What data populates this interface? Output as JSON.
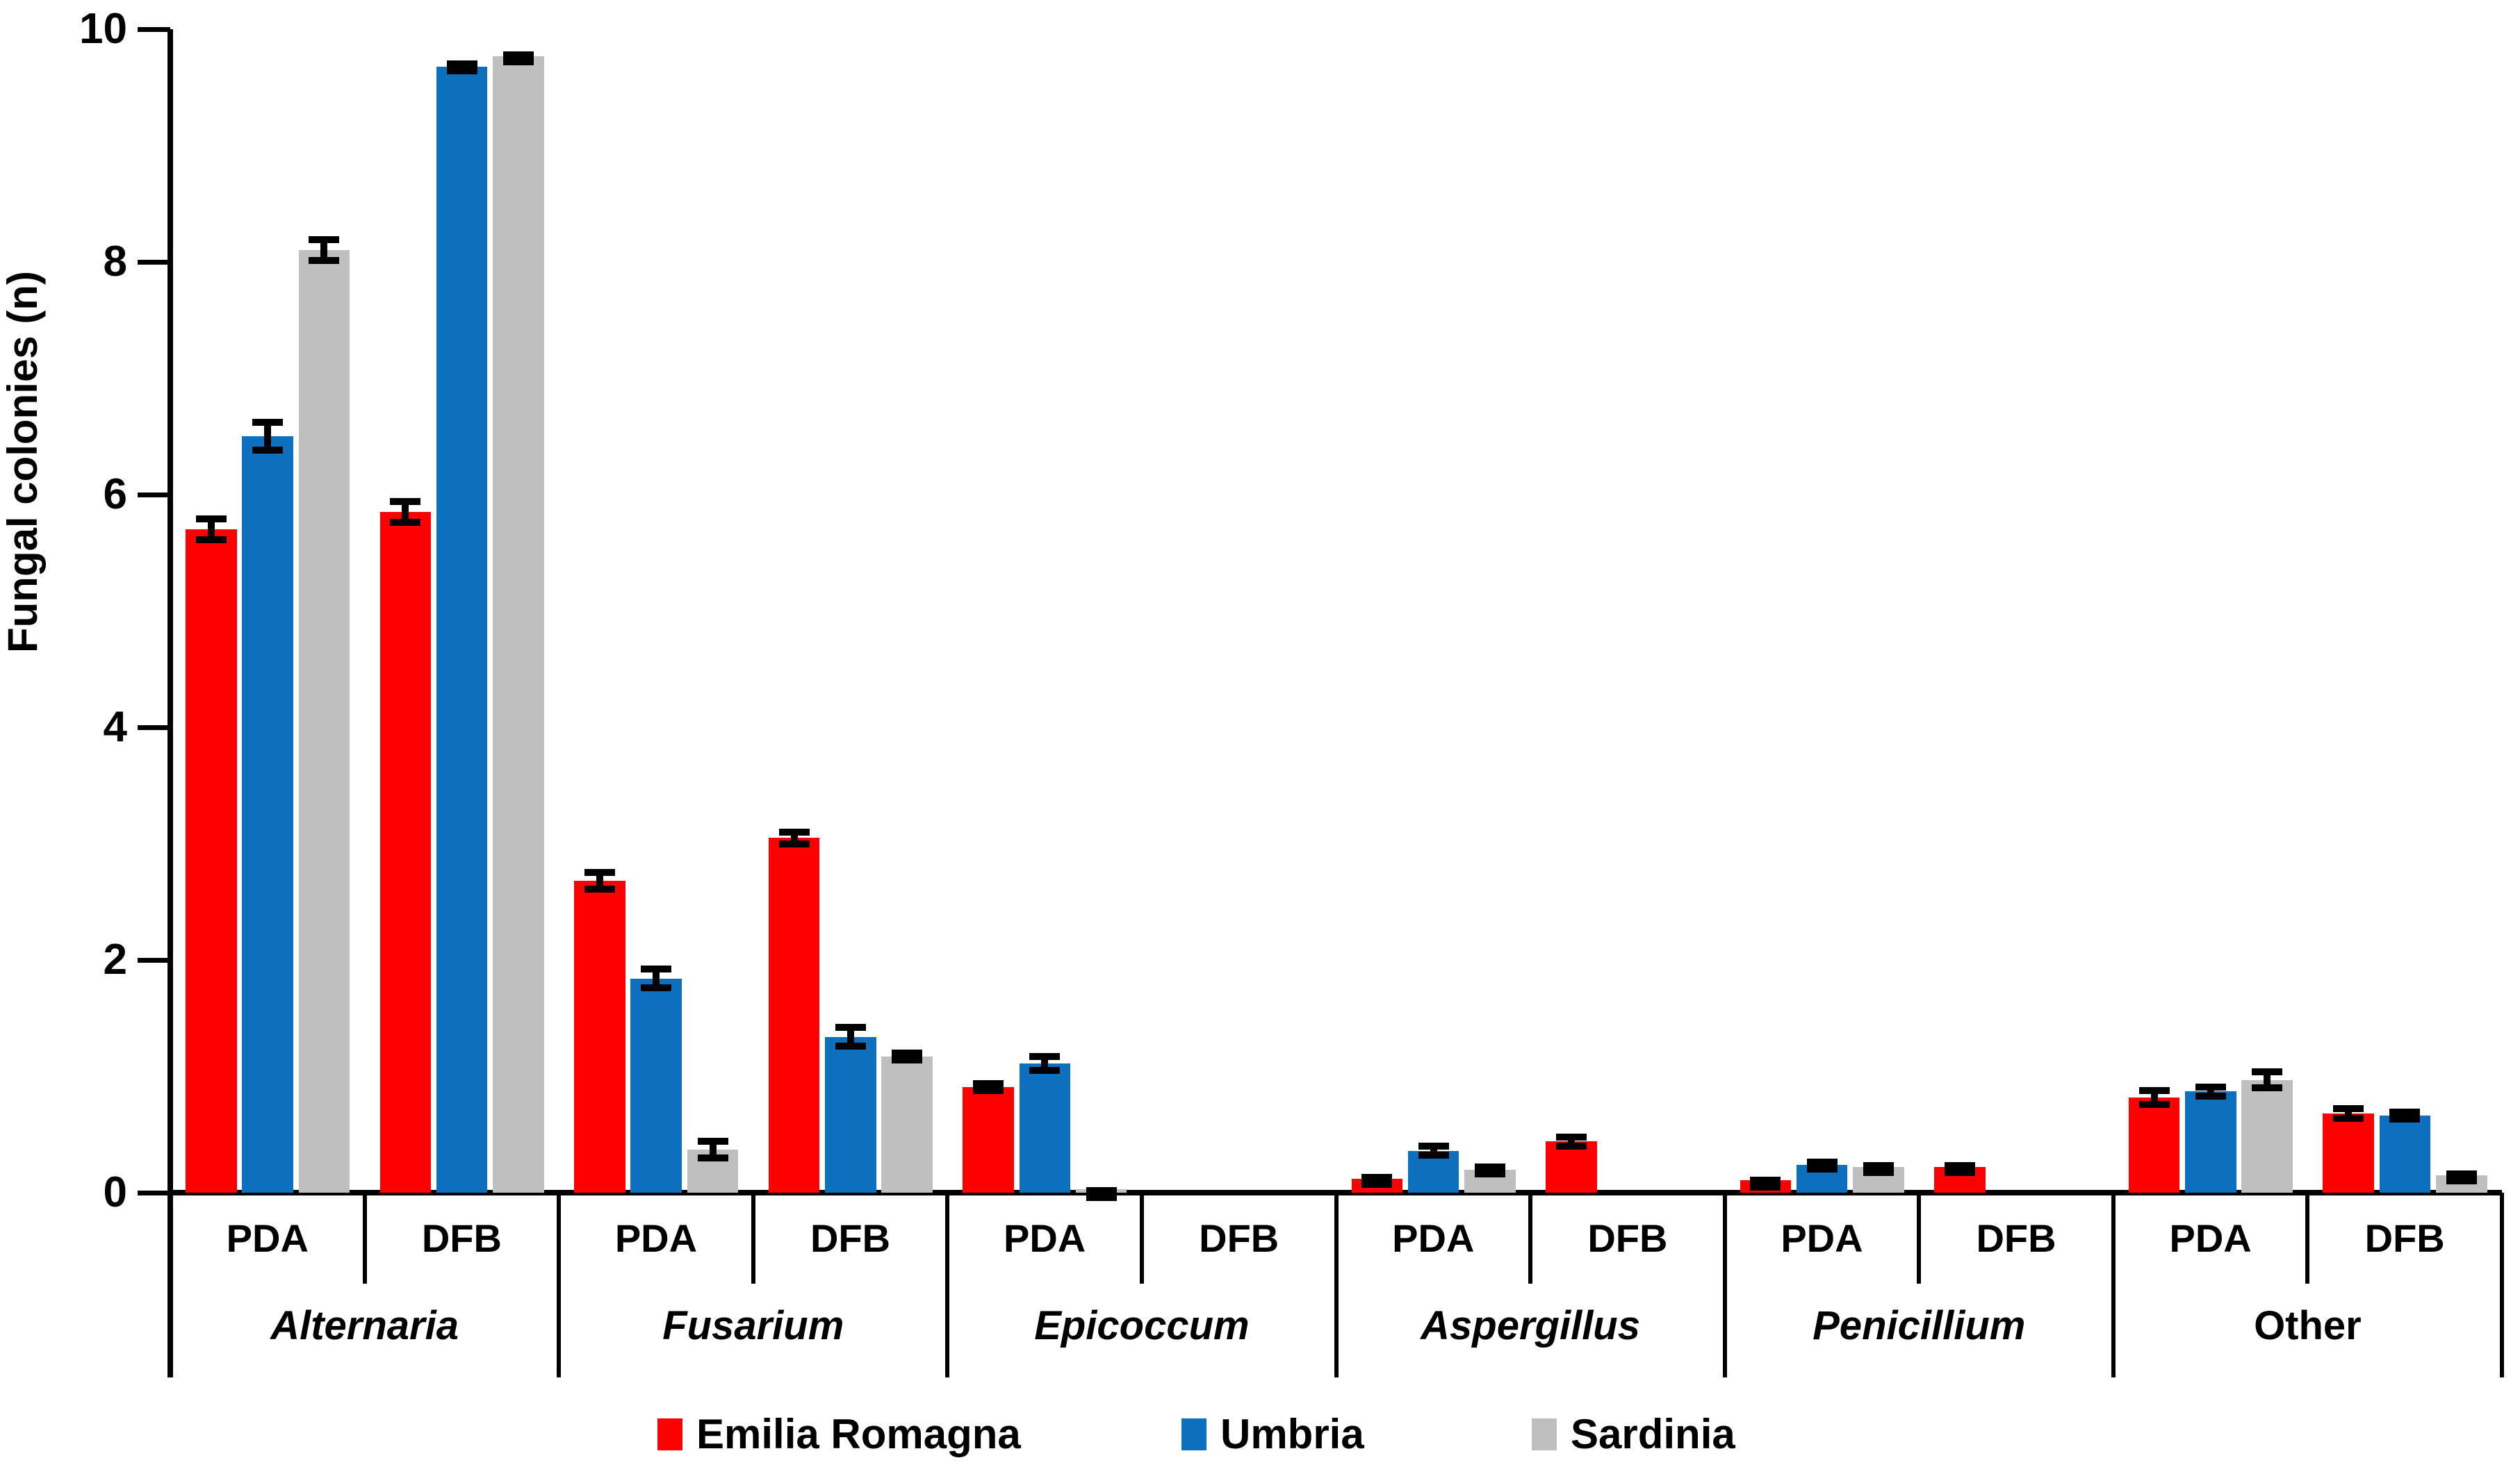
{
  "chart_data": {
    "type": "bar",
    "title": "",
    "ylabel": "Fungal colonies (n)",
    "xlabel": "",
    "ylim": [
      0,
      10
    ],
    "yticks": [
      0,
      2,
      4,
      6,
      8,
      10
    ],
    "grid": false,
    "legend_position": "bottom",
    "series": [
      {
        "name": "Emilia Romagna",
        "color": "#FE0000"
      },
      {
        "name": "Umbria",
        "color": "#0C70BE"
      },
      {
        "name": "Sardinia",
        "color": "#BFBFBF"
      }
    ],
    "groups": [
      {
        "genus": "Alternaria",
        "italic": true,
        "media": [
          {
            "label": "PDA",
            "values": [
              5.7,
              6.5,
              8.1
            ],
            "errors": [
              0.12,
              0.15,
              0.12
            ]
          },
          {
            "label": "DFB",
            "values": [
              5.85,
              9.68,
              9.77
            ],
            "errors": [
              0.12,
              0.05,
              0.04
            ]
          }
        ]
      },
      {
        "genus": "Fusarium",
        "italic": true,
        "media": [
          {
            "label": "PDA",
            "values": [
              2.68,
              1.84,
              0.37
            ],
            "errors": [
              0.1,
              0.11,
              0.1
            ]
          },
          {
            "label": "DFB",
            "values": [
              3.05,
              1.34,
              1.17
            ],
            "errors": [
              0.08,
              0.11,
              0.06
            ]
          }
        ]
      },
      {
        "genus": "Epicoccum",
        "italic": true,
        "media": [
          {
            "label": "PDA",
            "values": [
              0.91,
              1.11,
              0.03
            ],
            "errors": [
              0.06,
              0.09,
              0.02
            ]
          },
          {
            "label": "DFB",
            "values": [
              0,
              0,
              0
            ],
            "errors": [
              0,
              0,
              0
            ]
          }
        ]
      },
      {
        "genus": "Aspergillus",
        "italic": true,
        "media": [
          {
            "label": "PDA",
            "values": [
              0.12,
              0.36,
              0.2
            ],
            "errors": [
              0.04,
              0.07,
              0.05
            ]
          },
          {
            "label": "DFB",
            "values": [
              0.44,
              0,
              0
            ],
            "errors": [
              0.07,
              0,
              0
            ]
          }
        ]
      },
      {
        "genus": "Penicillium",
        "italic": true,
        "media": [
          {
            "label": "PDA",
            "values": [
              0.11,
              0.24,
              0.22
            ],
            "errors": [
              0.03,
              0.05,
              0.04
            ]
          },
          {
            "label": "DFB",
            "values": [
              0.22,
              0,
              0
            ],
            "errors": [
              0.04,
              0,
              0
            ]
          }
        ]
      },
      {
        "genus": "Other",
        "italic": false,
        "media": [
          {
            "label": "PDA",
            "values": [
              0.82,
              0.87,
              0.97
            ],
            "errors": [
              0.09,
              0.07,
              0.1
            ]
          },
          {
            "label": "DFB",
            "values": [
              0.68,
              0.66,
              0.15
            ],
            "errors": [
              0.07,
              0.06,
              0.04
            ]
          }
        ]
      }
    ]
  }
}
